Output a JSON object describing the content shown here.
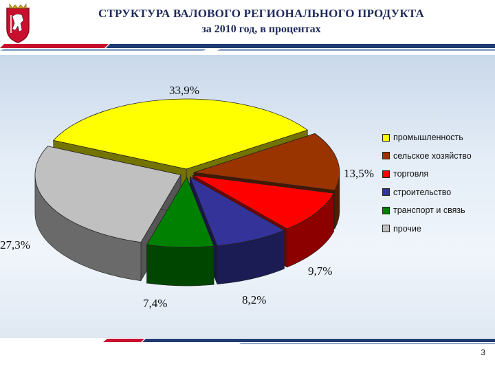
{
  "header": {
    "title": "СТРУКТУРА ВАЛОВОГО РЕГИОНАЛЬНОГО ПРОДУКТА",
    "subtitle": "за 2010 год, в процентах"
  },
  "colors": {
    "title": "#1f2a5a",
    "stripe_dark": "#1f3b73",
    "stripe_red": "#c8102e",
    "stripe_light": "#8fa9c9"
  },
  "chart_data": {
    "type": "pie",
    "title": "СТРУКТУРА ВАЛОВОГО РЕГИОНАЛЬНОГО ПРОДУКТА",
    "subtitle": "за 2010 год, в процентах",
    "legend_position": "right",
    "style": "3d exploded",
    "slices": [
      {
        "name": "промышленность",
        "value": 33.9,
        "label": "33,9%",
        "color": "#ffff00"
      },
      {
        "name": "сельское хозяйство",
        "value": 13.5,
        "label": "13,5%",
        "color": "#993300"
      },
      {
        "name": "торговля",
        "value": 9.7,
        "label": "9,7%",
        "color": "#ff0000"
      },
      {
        "name": "строительство",
        "value": 8.2,
        "label": "8,2%",
        "color": "#333399"
      },
      {
        "name": "транспорт и связь",
        "value": 7.4,
        "label": "7,4%",
        "color": "#008000"
      },
      {
        "name": "прочие",
        "value": 27.3,
        "label": "27,3%",
        "color": "#c0c0c0"
      }
    ]
  },
  "page_number": "3"
}
